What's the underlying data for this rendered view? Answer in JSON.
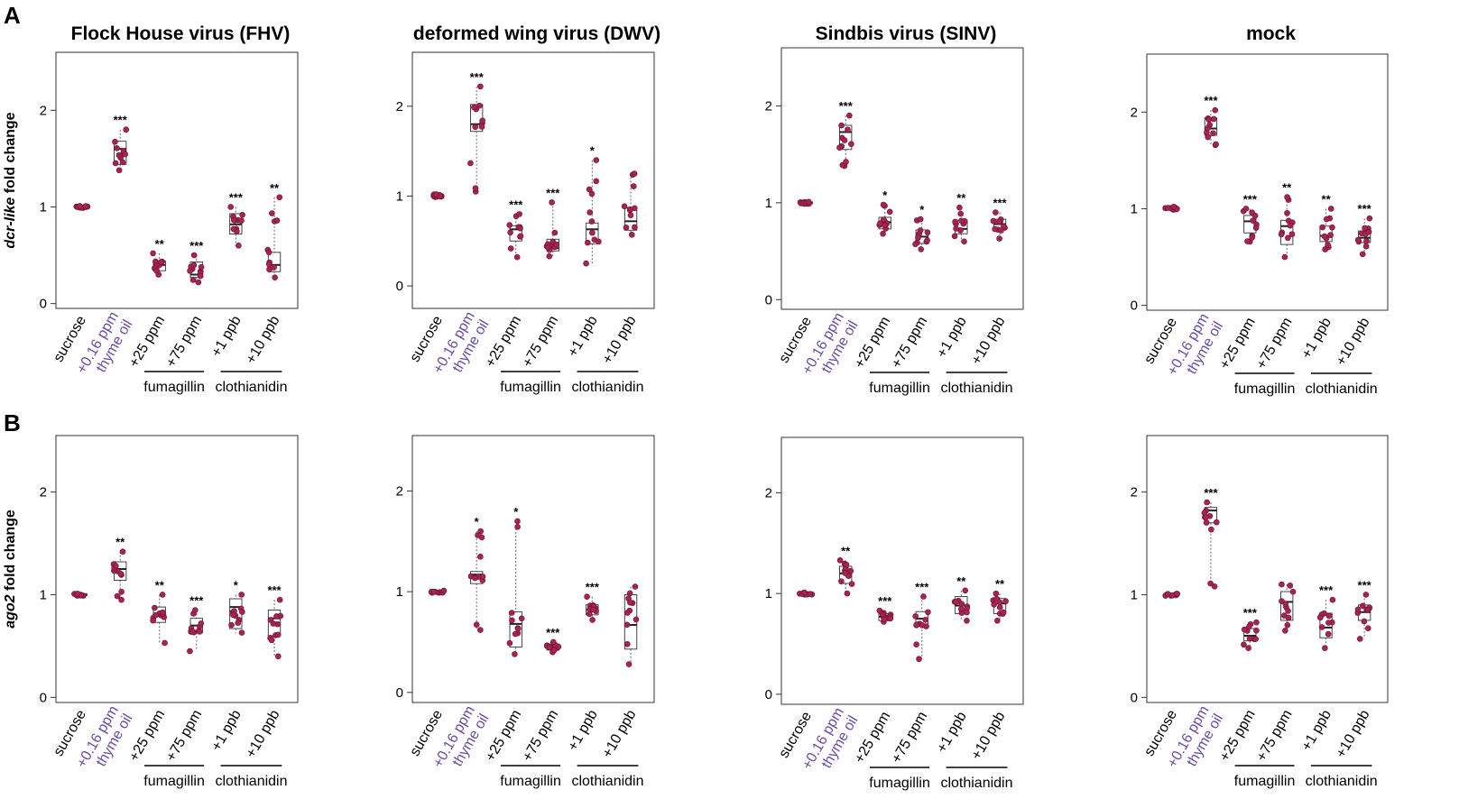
{
  "figure": {
    "panel_labels": [
      "A",
      "B"
    ],
    "category_labels": [
      "sucrose",
      "+0.16 ppm\nthyme oil",
      "+25 ppm",
      "+75 ppm",
      "+1 ppb",
      "+10 ppb"
    ],
    "group_labels": [
      "fumagillin",
      "clothianidin"
    ],
    "colors": {
      "point": "#a8234e",
      "thyme": "#6a4aa8"
    }
  },
  "chart_data": [
    {
      "type": "box",
      "row": "A",
      "title": "Flock House virus (FHV)",
      "ylabel": "dcr-like fold change",
      "ylim": [
        -0.05,
        2.6
      ],
      "yticks": [
        "0",
        "1",
        "2"
      ],
      "categories": [
        "sucrose",
        "+0.16 ppm thyme oil",
        "+25 ppm",
        "+75 ppm",
        "+1 ppb",
        "+10 ppb"
      ],
      "boxes": [
        {
          "q1": 0.99,
          "median": 1.0,
          "q3": 1.01,
          "min": 0.99,
          "max": 1.01,
          "sig": ""
        },
        {
          "q1": 1.44,
          "median": 1.6,
          "q3": 1.68,
          "min": 1.38,
          "max": 1.8,
          "sig": "***"
        },
        {
          "q1": 0.34,
          "median": 0.4,
          "q3": 0.44,
          "min": 0.3,
          "max": 0.52,
          "sig": "**"
        },
        {
          "q1": 0.27,
          "median": 0.3,
          "q3": 0.43,
          "min": 0.22,
          "max": 0.5,
          "sig": "***"
        },
        {
          "q1": 0.72,
          "median": 0.82,
          "q3": 0.93,
          "min": 0.6,
          "max": 1.0,
          "sig": "***"
        },
        {
          "q1": 0.33,
          "median": 0.4,
          "q3": 0.53,
          "min": 0.27,
          "max": 1.1,
          "sig": "**"
        }
      ]
    },
    {
      "type": "box",
      "row": "A",
      "title": "deformed wing virus (DWV)",
      "ylabel": "",
      "ylim": [
        -0.25,
        2.6
      ],
      "yticks": [
        "0",
        "1",
        "2"
      ],
      "categories": [
        "sucrose",
        "+0.16 ppm thyme oil",
        "+25 ppm",
        "+75 ppm",
        "+1 ppb",
        "+10 ppb"
      ],
      "boxes": [
        {
          "q1": 0.99,
          "median": 1.01,
          "q3": 1.02,
          "min": 0.99,
          "max": 1.02,
          "sig": ""
        },
        {
          "q1": 1.72,
          "median": 1.8,
          "q3": 2.02,
          "min": 1.05,
          "max": 2.22,
          "sig": "***"
        },
        {
          "q1": 0.5,
          "median": 0.63,
          "q3": 0.67,
          "min": 0.32,
          "max": 0.8,
          "sig": "***"
        },
        {
          "q1": 0.39,
          "median": 0.42,
          "q3": 0.52,
          "min": 0.33,
          "max": 0.93,
          "sig": "***"
        },
        {
          "q1": 0.47,
          "median": 0.63,
          "q3": 0.7,
          "min": 0.25,
          "max": 1.4,
          "sig": "*"
        },
        {
          "q1": 0.62,
          "median": 0.72,
          "q3": 0.87,
          "min": 0.57,
          "max": 1.25,
          "sig": ""
        }
      ]
    },
    {
      "type": "box",
      "row": "A",
      "title": "Sindbis virus (SINV)",
      "ylabel": "",
      "ylim": [
        -0.1,
        2.6
      ],
      "yticks": [
        "0",
        "1",
        "2"
      ],
      "categories": [
        "sucrose",
        "+0.16 ppm thyme oil",
        "+25 ppm",
        "+75 ppm",
        "+1 ppb",
        "+10 ppb"
      ],
      "boxes": [
        {
          "q1": 0.99,
          "median": 1.0,
          "q3": 1.01,
          "min": 0.99,
          "max": 1.01,
          "sig": ""
        },
        {
          "q1": 1.55,
          "median": 1.73,
          "q3": 1.8,
          "min": 1.38,
          "max": 1.9,
          "sig": "***"
        },
        {
          "q1": 0.73,
          "median": 0.8,
          "q3": 0.85,
          "min": 0.68,
          "max": 0.98,
          "sig": "*"
        },
        {
          "q1": 0.58,
          "median": 0.65,
          "q3": 0.72,
          "min": 0.52,
          "max": 0.83,
          "sig": "*"
        },
        {
          "q1": 0.68,
          "median": 0.73,
          "q3": 0.82,
          "min": 0.6,
          "max": 0.95,
          "sig": "**"
        },
        {
          "q1": 0.72,
          "median": 0.78,
          "q3": 0.83,
          "min": 0.63,
          "max": 0.9,
          "sig": "***"
        }
      ]
    },
    {
      "type": "box",
      "row": "A",
      "title": "mock",
      "ylabel": "",
      "ylim": [
        -0.05,
        2.6
      ],
      "yticks": [
        "0",
        "1",
        "2"
      ],
      "categories": [
        "sucrose",
        "+0.16 ppm thyme oil",
        "+25 ppm",
        "+75 ppm",
        "+1 ppb",
        "+10 ppb"
      ],
      "boxes": [
        {
          "q1": 0.99,
          "median": 1.0,
          "q3": 1.02,
          "min": 0.99,
          "max": 1.02,
          "sig": ""
        },
        {
          "q1": 1.76,
          "median": 1.83,
          "q3": 1.94,
          "min": 1.66,
          "max": 2.02,
          "sig": "***"
        },
        {
          "q1": 0.75,
          "median": 0.87,
          "q3": 0.93,
          "min": 0.66,
          "max": 1.0,
          "sig": "***"
        },
        {
          "q1": 0.63,
          "median": 0.82,
          "q3": 0.88,
          "min": 0.5,
          "max": 1.12,
          "sig": "**"
        },
        {
          "q1": 0.66,
          "median": 0.72,
          "q3": 0.82,
          "min": 0.58,
          "max": 1.0,
          "sig": "**"
        },
        {
          "q1": 0.65,
          "median": 0.7,
          "q3": 0.77,
          "min": 0.53,
          "max": 0.9,
          "sig": "***"
        }
      ]
    },
    {
      "type": "box",
      "row": "B",
      "title": "",
      "ylabel": "ago2 fold change",
      "ylim": [
        -0.05,
        2.55
      ],
      "yticks": [
        "0",
        "1",
        "2"
      ],
      "categories": [
        "sucrose",
        "+0.16 ppm thyme oil",
        "+25 ppm",
        "+75 ppm",
        "+1 ppb",
        "+10 ppb"
      ],
      "boxes": [
        {
          "q1": 0.99,
          "median": 1.0,
          "q3": 1.01,
          "min": 0.99,
          "max": 1.01,
          "sig": ""
        },
        {
          "q1": 1.14,
          "median": 1.25,
          "q3": 1.32,
          "min": 0.95,
          "max": 1.42,
          "sig": "**"
        },
        {
          "q1": 0.73,
          "median": 0.81,
          "q3": 0.88,
          "min": 0.53,
          "max": 1.0,
          "sig": "**"
        },
        {
          "q1": 0.63,
          "median": 0.7,
          "q3": 0.77,
          "min": 0.45,
          "max": 0.85,
          "sig": "***"
        },
        {
          "q1": 0.67,
          "median": 0.88,
          "q3": 0.96,
          "min": 0.63,
          "max": 1.0,
          "sig": "*"
        },
        {
          "q1": 0.6,
          "median": 0.77,
          "q3": 0.85,
          "min": 0.4,
          "max": 0.95,
          "sig": "***"
        }
      ]
    },
    {
      "type": "box",
      "row": "B",
      "title": "",
      "ylabel": "",
      "ylim": [
        -0.1,
        2.55
      ],
      "yticks": [
        "0",
        "1",
        "2"
      ],
      "categories": [
        "sucrose",
        "+0.16 ppm thyme oil",
        "+25 ppm",
        "+75 ppm",
        "+1 ppb",
        "+10 ppb"
      ],
      "boxes": [
        {
          "q1": 0.99,
          "median": 1.0,
          "q3": 1.01,
          "min": 0.99,
          "max": 1.01,
          "sig": ""
        },
        {
          "q1": 1.08,
          "median": 1.17,
          "q3": 1.2,
          "min": 0.62,
          "max": 1.6,
          "sig": "*"
        },
        {
          "q1": 0.45,
          "median": 0.68,
          "q3": 0.8,
          "min": 0.38,
          "max": 1.7,
          "sig": "*"
        },
        {
          "q1": 0.42,
          "median": 0.45,
          "q3": 0.48,
          "min": 0.4,
          "max": 0.5,
          "sig": "***"
        },
        {
          "q1": 0.77,
          "median": 0.82,
          "q3": 0.87,
          "min": 0.72,
          "max": 0.95,
          "sig": "***"
        },
        {
          "q1": 0.43,
          "median": 0.67,
          "q3": 0.97,
          "min": 0.28,
          "max": 1.05,
          "sig": ""
        }
      ]
    },
    {
      "type": "box",
      "row": "B",
      "title": "",
      "ylabel": "",
      "ylim": [
        -0.1,
        2.55
      ],
      "yticks": [
        "0",
        "1",
        "2"
      ],
      "categories": [
        "sucrose",
        "+0.16 ppm thyme oil",
        "+25 ppm",
        "+75 ppm",
        "+1 ppb",
        "+10 ppb"
      ],
      "boxes": [
        {
          "q1": 0.99,
          "median": 1.0,
          "q3": 1.01,
          "min": 0.99,
          "max": 1.01,
          "sig": ""
        },
        {
          "q1": 1.1,
          "median": 1.2,
          "q3": 1.27,
          "min": 1.0,
          "max": 1.33,
          "sig": "**"
        },
        {
          "q1": 0.73,
          "median": 0.77,
          "q3": 0.8,
          "min": 0.72,
          "max": 0.83,
          "sig": "***"
        },
        {
          "q1": 0.68,
          "median": 0.75,
          "q3": 0.82,
          "min": 0.35,
          "max": 0.97,
          "sig": "***"
        },
        {
          "q1": 0.8,
          "median": 0.88,
          "q3": 0.97,
          "min": 0.73,
          "max": 1.03,
          "sig": "**"
        },
        {
          "q1": 0.8,
          "median": 0.9,
          "q3": 0.95,
          "min": 0.73,
          "max": 1.0,
          "sig": "**"
        }
      ]
    },
    {
      "type": "box",
      "row": "B",
      "title": "",
      "ylabel": "",
      "ylim": [
        -0.05,
        2.55
      ],
      "yticks": [
        "0",
        "1",
        "2"
      ],
      "categories": [
        "sucrose",
        "+0.16 ppm thyme oil",
        "+25 ppm",
        "+75 ppm",
        "+1 ppb",
        "+10 ppb"
      ],
      "boxes": [
        {
          "q1": 0.99,
          "median": 1.0,
          "q3": 1.01,
          "min": 0.99,
          "max": 1.01,
          "sig": ""
        },
        {
          "q1": 1.7,
          "median": 1.82,
          "q3": 1.85,
          "min": 1.08,
          "max": 1.9,
          "sig": "***"
        },
        {
          "q1": 0.55,
          "median": 0.6,
          "q3": 0.67,
          "min": 0.48,
          "max": 0.73,
          "sig": "***"
        },
        {
          "q1": 0.75,
          "median": 0.93,
          "q3": 1.03,
          "min": 0.65,
          "max": 1.1,
          "sig": ""
        },
        {
          "q1": 0.58,
          "median": 0.68,
          "q3": 0.82,
          "min": 0.48,
          "max": 0.95,
          "sig": "***"
        },
        {
          "q1": 0.75,
          "median": 0.83,
          "q3": 0.9,
          "min": 0.57,
          "max": 1.0,
          "sig": "***"
        }
      ]
    }
  ]
}
